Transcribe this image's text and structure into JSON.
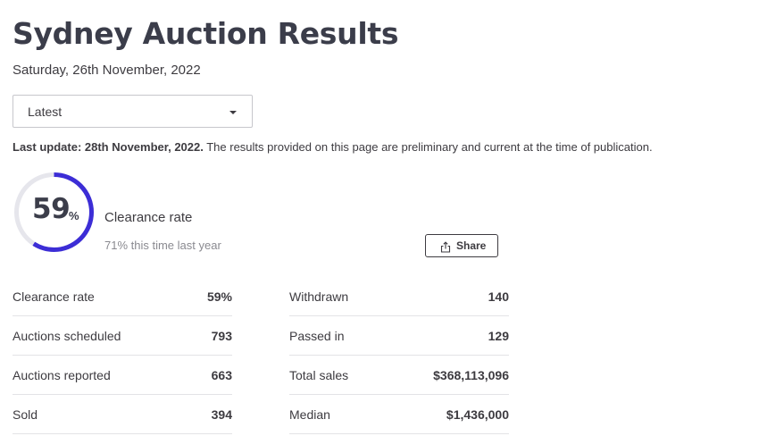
{
  "page": {
    "title": "Sydney Auction Results",
    "date": "Saturday, 26th November, 2022"
  },
  "filter": {
    "selected": "Latest"
  },
  "update": {
    "bold": "Last update: 28th November, 2022.",
    "text": " The results provided on this page are preliminary and current at the time of publication."
  },
  "clearance": {
    "value": "59",
    "unit": "%",
    "fraction": 0.59,
    "label": "Clearance rate",
    "comparison": "71% this time last year"
  },
  "share": {
    "label": "Share",
    "icon": "share-icon"
  },
  "colors": {
    "accent": "#3c2dd6",
    "track": "#e6e6ec"
  },
  "stats_left": [
    {
      "label": "Clearance rate",
      "value": "59%"
    },
    {
      "label": "Auctions scheduled",
      "value": "793"
    },
    {
      "label": "Auctions reported",
      "value": "663"
    },
    {
      "label": "Sold",
      "value": "394"
    }
  ],
  "stats_right": [
    {
      "label": "Withdrawn",
      "value": "140"
    },
    {
      "label": "Passed in",
      "value": "129"
    },
    {
      "label": "Total sales",
      "value": "$368,113,096"
    },
    {
      "label": "Median",
      "value": "$1,436,000"
    }
  ]
}
